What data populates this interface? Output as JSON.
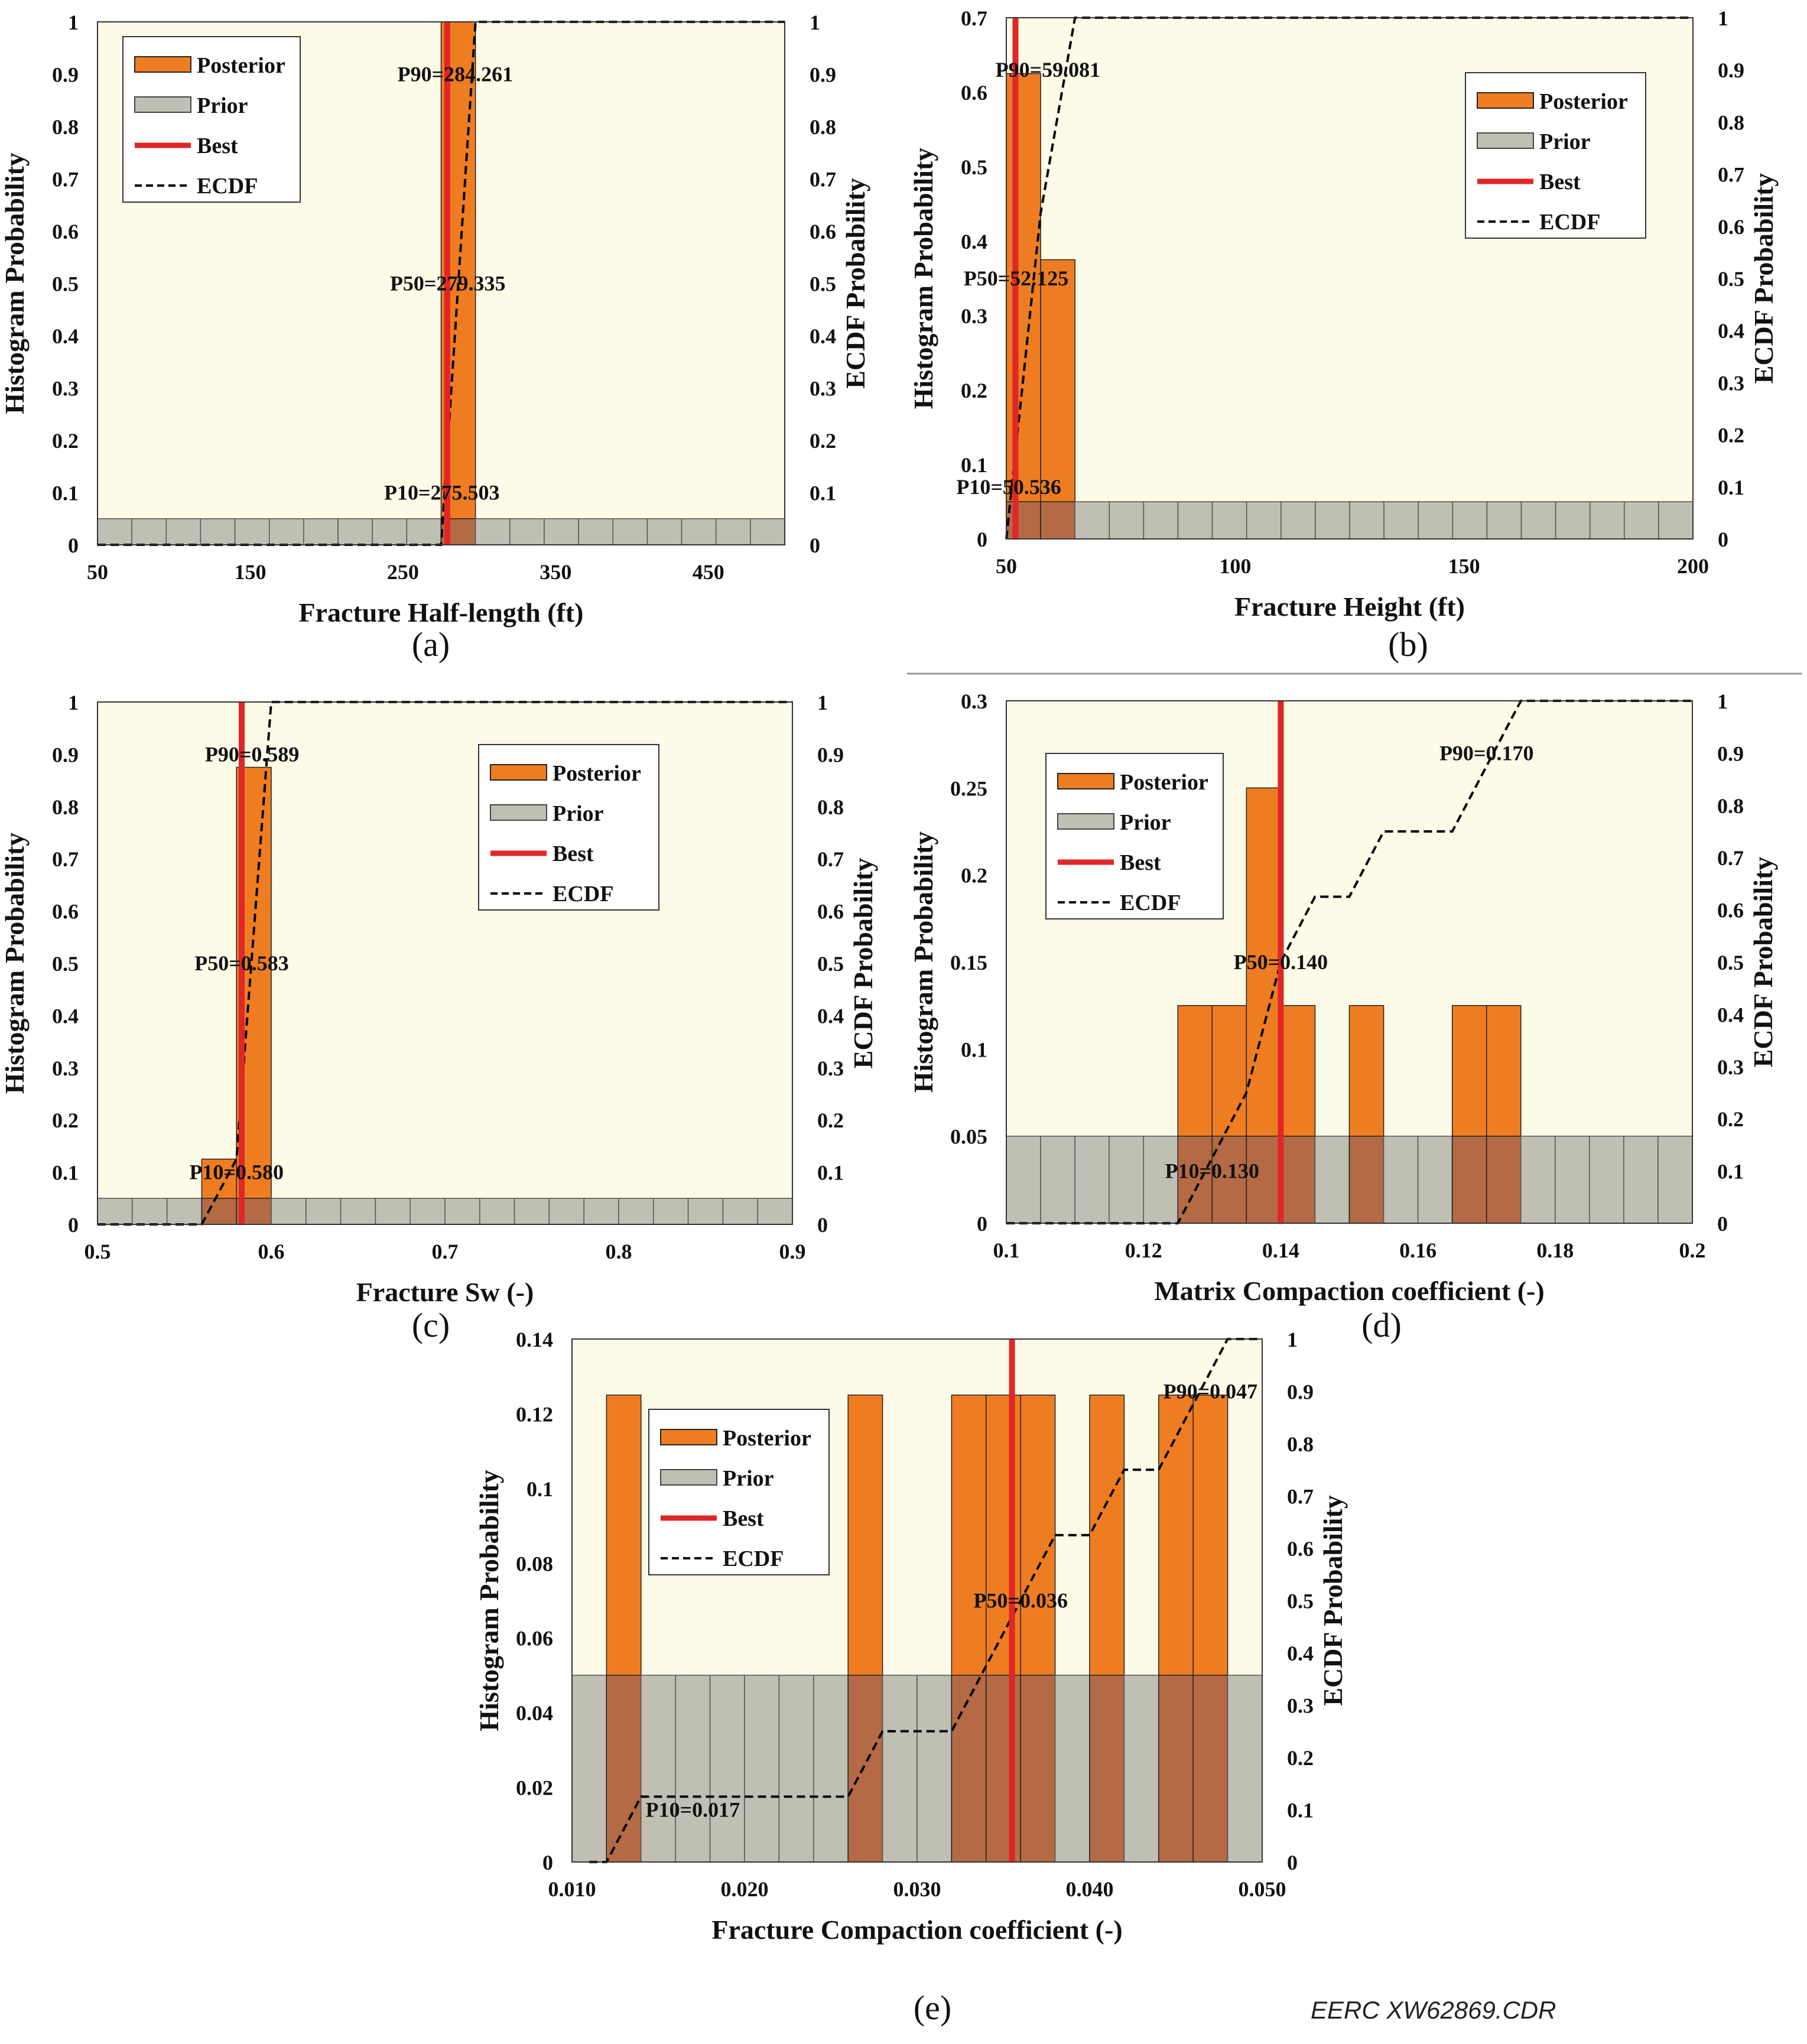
{
  "colors": {
    "plot_bg": "#fbfbe8",
    "posterior": "#ee7d22",
    "prior": "#bfbfb4",
    "overlap": "#b36a45",
    "best": "#e02626",
    "ecdf": "#000000",
    "divider": "#999999"
  },
  "credit": "EERC XW62869.CDR",
  "legend_labels": [
    "Posterior",
    "Prior",
    "Best",
    "ECDF"
  ],
  "chart_data": [
    {
      "id": "a",
      "type": "bar",
      "panel_label": "(a)",
      "xlabel": "Fracture Half-length (ft)",
      "ylabel": "Histogram Probability",
      "y2label": "ECDF Probability",
      "xlim": [
        50,
        500
      ],
      "ylim": [
        0,
        1
      ],
      "y2lim": [
        0,
        1
      ],
      "xticks": [
        50,
        150,
        250,
        350,
        450
      ],
      "xtick_labels": [
        "50",
        "150",
        "250",
        "350",
        "450"
      ],
      "yticks": [
        0,
        0.1,
        0.2,
        0.3,
        0.4,
        0.5,
        0.6,
        0.7,
        0.8,
        0.9,
        1
      ],
      "ytick_labels": [
        "0",
        "0.1",
        "0.2",
        "0.3",
        "0.4",
        "0.5",
        "0.6",
        "0.7",
        "0.8",
        "0.9",
        "1"
      ],
      "y2ticks": [
        0,
        0.1,
        0.2,
        0.3,
        0.4,
        0.5,
        0.6,
        0.7,
        0.8,
        0.9,
        1
      ],
      "y2tick_labels": [
        "0",
        "0.1",
        "0.2",
        "0.3",
        "0.4",
        "0.5",
        "0.6",
        "0.7",
        "0.8",
        "0.9",
        "1"
      ],
      "bin_edges": [
        50,
        72.5,
        95,
        117.5,
        140,
        162.5,
        185,
        207.5,
        230,
        252.5,
        275,
        297.5,
        320,
        342.5,
        365,
        387.5,
        410,
        432.5,
        455,
        477.5,
        500
      ],
      "prior": [
        0.05,
        0.05,
        0.05,
        0.05,
        0.05,
        0.05,
        0.05,
        0.05,
        0.05,
        0.05,
        0.05,
        0.05,
        0.05,
        0.05,
        0.05,
        0.05,
        0.05,
        0.05,
        0.05,
        0.05
      ],
      "posterior": [
        0,
        0,
        0,
        0,
        0,
        0,
        0,
        0,
        0,
        0,
        1,
        0,
        0,
        0,
        0,
        0,
        0,
        0,
        0,
        0
      ],
      "best": 279,
      "ecdf": [
        [
          50,
          0
        ],
        [
          275,
          0
        ],
        [
          297.5,
          1
        ],
        [
          500,
          1
        ]
      ],
      "annotations": [
        {
          "text": "P90=284.261",
          "x": 284.261,
          "y": 0.9
        },
        {
          "text": "P50=279.335",
          "x": 279.335,
          "y": 0.5
        },
        {
          "text": "P10=275.503",
          "x": 275.503,
          "y": 0.1
        }
      ],
      "legend": "top-left"
    },
    {
      "id": "b",
      "type": "bar",
      "panel_label": "(b)",
      "xlabel": "Fracture Height (ft)",
      "ylabel": "Histogram Probability",
      "y2label": "ECDF Probability",
      "xlim": [
        50,
        200
      ],
      "ylim": [
        0,
        0.7
      ],
      "y2lim": [
        0,
        1
      ],
      "xticks": [
        50,
        100,
        150,
        200
      ],
      "xtick_labels": [
        "50",
        "100",
        "150",
        "200"
      ],
      "yticks": [
        0,
        0.1,
        0.2,
        0.3,
        0.4,
        0.5,
        0.6,
        0.7
      ],
      "ytick_labels": [
        "0",
        "0.1",
        "0.2",
        "0.3",
        "0.4",
        "0.5",
        "0.6",
        "0.7"
      ],
      "y2ticks": [
        0,
        0.1,
        0.2,
        0.3,
        0.4,
        0.5,
        0.6,
        0.7,
        0.8,
        0.9,
        1
      ],
      "y2tick_labels": [
        "0",
        "0.1",
        "0.2",
        "0.3",
        "0.4",
        "0.5",
        "0.6",
        "0.7",
        "0.8",
        "0.9",
        "1"
      ],
      "bin_edges": [
        50,
        57.5,
        65,
        72.5,
        80,
        87.5,
        95,
        102.5,
        110,
        117.5,
        125,
        132.5,
        140,
        147.5,
        155,
        162.5,
        170,
        177.5,
        185,
        192.5,
        200
      ],
      "prior": [
        0.05,
        0.05,
        0.05,
        0.05,
        0.05,
        0.05,
        0.05,
        0.05,
        0.05,
        0.05,
        0.05,
        0.05,
        0.05,
        0.05,
        0.05,
        0.05,
        0.05,
        0.05,
        0.05,
        0.05
      ],
      "posterior": [
        0.625,
        0.375,
        0,
        0,
        0,
        0,
        0,
        0,
        0,
        0,
        0,
        0,
        0,
        0,
        0,
        0,
        0,
        0,
        0,
        0
      ],
      "best": 52,
      "ecdf": [
        [
          50,
          0
        ],
        [
          57.5,
          0.625
        ],
        [
          65,
          1
        ],
        [
          200,
          1
        ]
      ],
      "annotations": [
        {
          "text": "P90=59.081",
          "x": 59.081,
          "y": 0.9
        },
        {
          "text": "P50=52.125",
          "x": 52.125,
          "y": 0.5
        },
        {
          "text": "P10=50.536",
          "x": 50.536,
          "y": 0.1
        }
      ],
      "legend": "top-right"
    },
    {
      "id": "c",
      "type": "bar",
      "panel_label": "(c)",
      "xlabel": "Fracture Sw (-)",
      "ylabel": "Histogram Probability",
      "y2label": "ECDF Probability",
      "xlim": [
        0.5,
        0.9
      ],
      "ylim": [
        0,
        1
      ],
      "y2lim": [
        0,
        1
      ],
      "xticks": [
        0.5,
        0.6,
        0.7,
        0.8,
        0.9
      ],
      "xtick_labels": [
        "0.5",
        "0.6",
        "0.7",
        "0.8",
        "0.9"
      ],
      "yticks": [
        0,
        0.1,
        0.2,
        0.3,
        0.4,
        0.5,
        0.6,
        0.7,
        0.8,
        0.9,
        1
      ],
      "ytick_labels": [
        "0",
        "0.1",
        "0.2",
        "0.3",
        "0.4",
        "0.5",
        "0.6",
        "0.7",
        "0.8",
        "0.9",
        "1"
      ],
      "y2ticks": [
        0,
        0.1,
        0.2,
        0.3,
        0.4,
        0.5,
        0.6,
        0.7,
        0.8,
        0.9,
        1
      ],
      "y2tick_labels": [
        "0",
        "0.1",
        "0.2",
        "0.3",
        "0.4",
        "0.5",
        "0.6",
        "0.7",
        "0.8",
        "0.9",
        "1"
      ],
      "bin_edges": [
        0.5,
        0.52,
        0.54,
        0.56,
        0.58,
        0.6,
        0.62,
        0.64,
        0.66,
        0.68,
        0.7,
        0.72,
        0.74,
        0.76,
        0.78,
        0.8,
        0.82,
        0.84,
        0.86,
        0.88,
        0.9
      ],
      "prior": [
        0.05,
        0.05,
        0.05,
        0.05,
        0.05,
        0.05,
        0.05,
        0.05,
        0.05,
        0.05,
        0.05,
        0.05,
        0.05,
        0.05,
        0.05,
        0.05,
        0.05,
        0.05,
        0.05,
        0.05
      ],
      "posterior": [
        0,
        0,
        0,
        0.125,
        0.875,
        0,
        0,
        0,
        0,
        0,
        0,
        0,
        0,
        0,
        0,
        0,
        0,
        0,
        0,
        0
      ],
      "best": 0.583,
      "ecdf": [
        [
          0.5,
          0
        ],
        [
          0.56,
          0
        ],
        [
          0.58,
          0.125
        ],
        [
          0.6,
          1
        ],
        [
          0.9,
          1
        ]
      ],
      "annotations": [
        {
          "text": "P90=0.589",
          "x": 0.589,
          "y": 0.9
        },
        {
          "text": "P50=0.583",
          "x": 0.583,
          "y": 0.5
        },
        {
          "text": "P10=0.580",
          "x": 0.58,
          "y": 0.1
        }
      ],
      "legend": "top-right"
    },
    {
      "id": "d",
      "type": "bar",
      "panel_label": "(d)",
      "xlabel": "Matrix Compaction coefficient (-)",
      "ylabel": "Histogram Probability",
      "y2label": "ECDF Probability",
      "xlim": [
        0.1,
        0.2
      ],
      "ylim": [
        0,
        0.3
      ],
      "y2lim": [
        0,
        1
      ],
      "xticks": [
        0.1,
        0.12,
        0.14,
        0.16,
        0.18,
        0.2
      ],
      "xtick_labels": [
        "0.1",
        "0.12",
        "0.14",
        "0.16",
        "0.18",
        "0.2"
      ],
      "yticks": [
        0,
        0.05,
        0.1,
        0.15,
        0.2,
        0.25,
        0.3
      ],
      "ytick_labels": [
        "0",
        "0.05",
        "0.1",
        "0.15",
        "0.2",
        "0.25",
        "0.3"
      ],
      "y2ticks": [
        0,
        0.1,
        0.2,
        0.3,
        0.4,
        0.5,
        0.6,
        0.7,
        0.8,
        0.9,
        1
      ],
      "y2tick_labels": [
        "0",
        "0.1",
        "0.2",
        "0.3",
        "0.4",
        "0.5",
        "0.6",
        "0.7",
        "0.8",
        "0.9",
        "1"
      ],
      "bin_edges": [
        0.1,
        0.105,
        0.11,
        0.115,
        0.12,
        0.125,
        0.13,
        0.135,
        0.14,
        0.145,
        0.15,
        0.155,
        0.16,
        0.165,
        0.17,
        0.175,
        0.18,
        0.185,
        0.19,
        0.195,
        0.2
      ],
      "prior": [
        0.05,
        0.05,
        0.05,
        0.05,
        0.05,
        0.05,
        0.05,
        0.05,
        0.05,
        0.05,
        0.05,
        0.05,
        0.05,
        0.05,
        0.05,
        0.05,
        0.05,
        0.05,
        0.05,
        0.05
      ],
      "posterior": [
        0,
        0,
        0,
        0,
        0,
        0.125,
        0.125,
        0.25,
        0.125,
        0,
        0.125,
        0,
        0,
        0.125,
        0.125,
        0,
        0,
        0,
        0,
        0
      ],
      "best": 0.14,
      "ecdf": [
        [
          0.1,
          0
        ],
        [
          0.125,
          0
        ],
        [
          0.13,
          0.125
        ],
        [
          0.135,
          0.25
        ],
        [
          0.14,
          0.5
        ],
        [
          0.145,
          0.625
        ],
        [
          0.15,
          0.625
        ],
        [
          0.155,
          0.75
        ],
        [
          0.165,
          0.75
        ],
        [
          0.17,
          0.875
        ],
        [
          0.175,
          1
        ],
        [
          0.2,
          1
        ]
      ],
      "annotations": [
        {
          "text": "P90=0.170",
          "x": 0.17,
          "y": 0.9
        },
        {
          "text": "P50=0.140",
          "x": 0.14,
          "y": 0.5
        },
        {
          "text": "P10=0.130",
          "x": 0.13,
          "y": 0.1
        }
      ],
      "legend": "top-left"
    },
    {
      "id": "e",
      "type": "bar",
      "panel_label": "(e)",
      "xlabel": "Fracture Compaction coefficient (-)",
      "ylabel": "Histogram Probability",
      "y2label": "ECDF Probability",
      "xlim": [
        0.01,
        0.05
      ],
      "ylim": [
        0,
        0.14
      ],
      "y2lim": [
        0,
        1
      ],
      "xticks": [
        0.01,
        0.02,
        0.03,
        0.04,
        0.05
      ],
      "xtick_labels": [
        "0.010",
        "0.020",
        "0.030",
        "0.040",
        "0.050"
      ],
      "yticks": [
        0,
        0.02,
        0.04,
        0.06,
        0.08,
        0.1,
        0.12,
        0.14
      ],
      "ytick_labels": [
        "0",
        "0.02",
        "0.04",
        "0.06",
        "0.08",
        "0.1",
        "0.12",
        "0.14"
      ],
      "y2ticks": [
        0,
        0.1,
        0.2,
        0.3,
        0.4,
        0.5,
        0.6,
        0.7,
        0.8,
        0.9,
        1
      ],
      "y2tick_labels": [
        "0",
        "0.1",
        "0.2",
        "0.3",
        "0.4",
        "0.5",
        "0.6",
        "0.7",
        "0.8",
        "0.9",
        "1"
      ],
      "bin_edges": [
        0.01,
        0.012,
        0.014,
        0.016,
        0.018,
        0.02,
        0.022,
        0.024,
        0.026,
        0.028,
        0.03,
        0.032,
        0.034,
        0.036,
        0.038,
        0.04,
        0.042,
        0.044,
        0.046,
        0.048,
        0.05
      ],
      "prior": [
        0.05,
        0.05,
        0.05,
        0.05,
        0.05,
        0.05,
        0.05,
        0.05,
        0.05,
        0.05,
        0.05,
        0.05,
        0.05,
        0.05,
        0.05,
        0.05,
        0.05,
        0.05,
        0.05,
        0.05
      ],
      "posterior": [
        0,
        0.125,
        0,
        0,
        0,
        0,
        0,
        0,
        0.125,
        0,
        0,
        0.125,
        0.125,
        0.125,
        0,
        0.125,
        0,
        0.125,
        0.125,
        0
      ],
      "best": 0.0355,
      "ecdf": [
        [
          0.011,
          0
        ],
        [
          0.012,
          0
        ],
        [
          0.014,
          0.125
        ],
        [
          0.026,
          0.125
        ],
        [
          0.028,
          0.25
        ],
        [
          0.032,
          0.25
        ],
        [
          0.034,
          0.375
        ],
        [
          0.036,
          0.5
        ],
        [
          0.038,
          0.625
        ],
        [
          0.04,
          0.625
        ],
        [
          0.042,
          0.75
        ],
        [
          0.044,
          0.75
        ],
        [
          0.046,
          0.875
        ],
        [
          0.048,
          1
        ],
        [
          0.05,
          1
        ]
      ],
      "annotations": [
        {
          "text": "P90=0.047",
          "x": 0.047,
          "y": 0.9
        },
        {
          "text": "P50=0.036",
          "x": 0.036,
          "y": 0.5
        },
        {
          "text": "P10=0.017",
          "x": 0.017,
          "y": 0.1
        }
      ],
      "legend": "top-left"
    }
  ]
}
